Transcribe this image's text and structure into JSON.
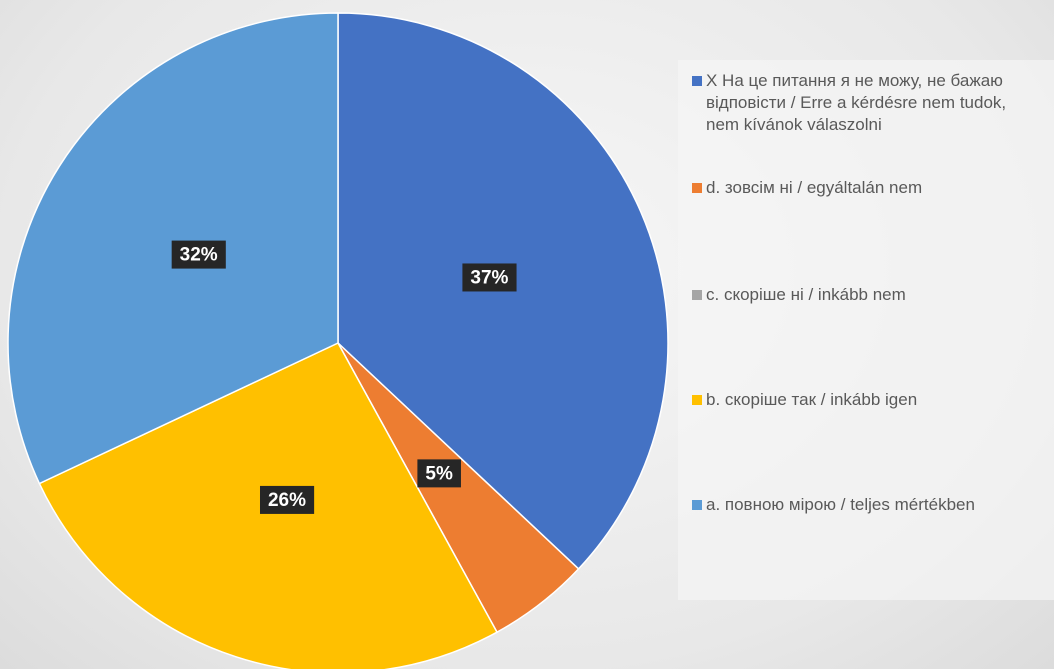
{
  "chart_data": {
    "type": "pie",
    "categories": [
      "X На це питання я не можу, не бажаю відповісти / Erre a kérdésre nem tudok, nem kívánok válaszolni",
      "d. зовсім ні / egyáltalán nem",
      "c. скоріше ні / inkább nem",
      "b. скоріше так / inkább igen",
      "a. повною мірою / teljes mértékben"
    ],
    "values": [
      37,
      5,
      0,
      26,
      32
    ],
    "value_labels": [
      "37%",
      "5%",
      null,
      "26%",
      "32%"
    ],
    "colors": [
      "#4472c4",
      "#ed7d31",
      "#a5a5a5",
      "#ffc000",
      "#5b9bd5"
    ],
    "legend": "right"
  }
}
